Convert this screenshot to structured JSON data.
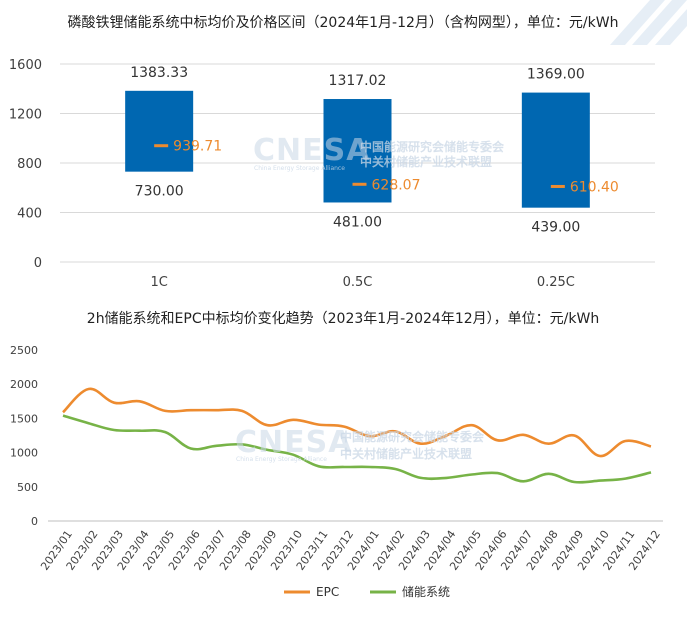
{
  "chart_data": [
    {
      "type": "bar",
      "title": "磷酸铁锂储能系统中标均价及价格区间（2024年1月-12月）（含构网型），单位：元/kWh",
      "categories": [
        "1C",
        "0.5C",
        "0.25C"
      ],
      "series": [
        {
          "low": [
            730.0,
            481.0,
            439.0
          ],
          "high": [
            1383.33,
            1317.02,
            1369.0
          ],
          "avg": [
            939.71,
            628.07,
            610.4
          ]
        }
      ],
      "low_labels": [
        "730.00",
        "481.00",
        "439.00"
      ],
      "high_labels": [
        "1383.33",
        "1317.02",
        "1369.00"
      ],
      "avg_labels": [
        "939.71",
        "628.07",
        "610.40"
      ],
      "yticks": [
        "0",
        "400",
        "800",
        "1200",
        "1600"
      ],
      "ylim": [
        0,
        1600
      ],
      "grid": true,
      "colors": {
        "bar": "#0067B1",
        "avg": "#ED8B2F"
      }
    },
    {
      "type": "line",
      "title": "2h储能系统和EPC中标均价变化趋势（2023年1月-2024年12月），单位：元/kWh",
      "x": [
        "2023/01",
        "2023/02",
        "2023/03",
        "2023/04",
        "2023/05",
        "2023/06",
        "2023/07",
        "2023/08",
        "2023/09",
        "2023/10",
        "2023/11",
        "2023/12",
        "2024/01",
        "2024/02",
        "2024/03",
        "2024/04",
        "2024/05",
        "2024/06",
        "2024/07",
        "2024/08",
        "2024/09",
        "2024/10",
        "2024/11",
        "2024/12"
      ],
      "series": [
        {
          "name": "EPC",
          "color": "#ED8B2F",
          "values": [
            1590,
            1930,
            1730,
            1750,
            1610,
            1620,
            1620,
            1610,
            1400,
            1480,
            1410,
            1380,
            1240,
            1310,
            1130,
            1250,
            1400,
            1180,
            1260,
            1130,
            1250,
            950,
            1170,
            1090
          ]
        },
        {
          "name": "储能系统",
          "color": "#77B347",
          "values": [
            1540,
            1430,
            1330,
            1320,
            1300,
            1060,
            1100,
            1120,
            1040,
            970,
            800,
            790,
            790,
            760,
            630,
            630,
            680,
            700,
            580,
            690,
            570,
            590,
            620,
            710
          ]
        }
      ],
      "yticks": [
        "0",
        "500",
        "1000",
        "1500",
        "2000",
        "2500"
      ],
      "ylim": [
        0,
        2500
      ],
      "grid": false,
      "legend": "bottom"
    }
  ],
  "watermark": {
    "brand": "CNESA",
    "line1": "中国能源研究会储能专委会",
    "line2": "中关村储能产业技术联盟",
    "english": "China Energy Storage Alliance"
  }
}
